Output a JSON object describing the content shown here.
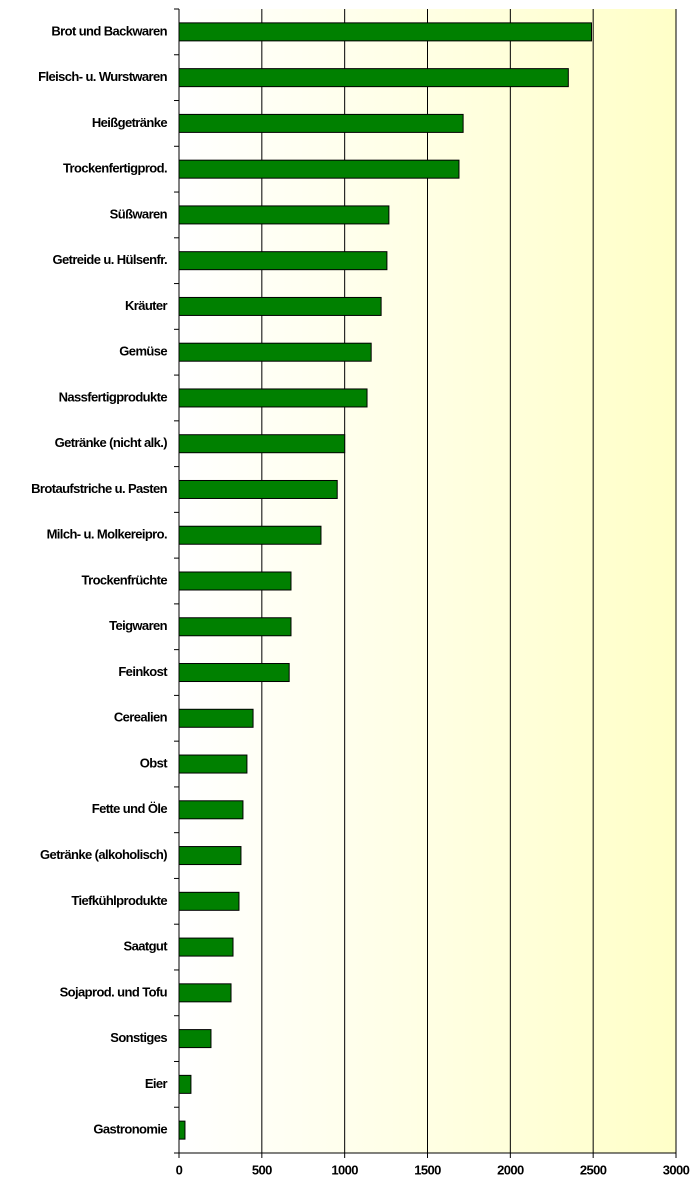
{
  "chart_data": {
    "type": "bar",
    "orientation": "horizontal",
    "categories": [
      "Brot und Backwaren",
      "Fleisch- u. Wurstwaren",
      "Heißgetränke",
      "Trockenfertigprod.",
      "Süßwaren",
      "Getreide u. Hülsenfr.",
      "Kräuter",
      "Gemüse",
      "Nassfertigprodukte",
      "Getränke (nicht alk.)",
      "Brotaufstriche u. Pasten",
      "Milch- u. Molkereipro.",
      "Trockenfrüchte",
      "Teigwaren",
      "Feinkost",
      "Cerealien",
      "Obst",
      "Fette und Öle",
      "Getränke (alkoholisch)",
      "Tiefkühlprodukte",
      "Saatgut",
      "Sojaprod. und Tofu",
      "Sonstiges",
      "Eier",
      "Gastronomie"
    ],
    "values": [
      2490,
      2350,
      1715,
      1690,
      1267,
      1255,
      1220,
      1160,
      1135,
      1000,
      955,
      857,
      676,
      676,
      665,
      447,
      410,
      386,
      374,
      362,
      326,
      314,
      193,
      72,
      36
    ],
    "color": "#008000",
    "xlim": [
      0,
      3000
    ],
    "xticks": [
      0,
      500,
      1000,
      1500,
      2000,
      2500,
      3000
    ],
    "grid": true
  }
}
